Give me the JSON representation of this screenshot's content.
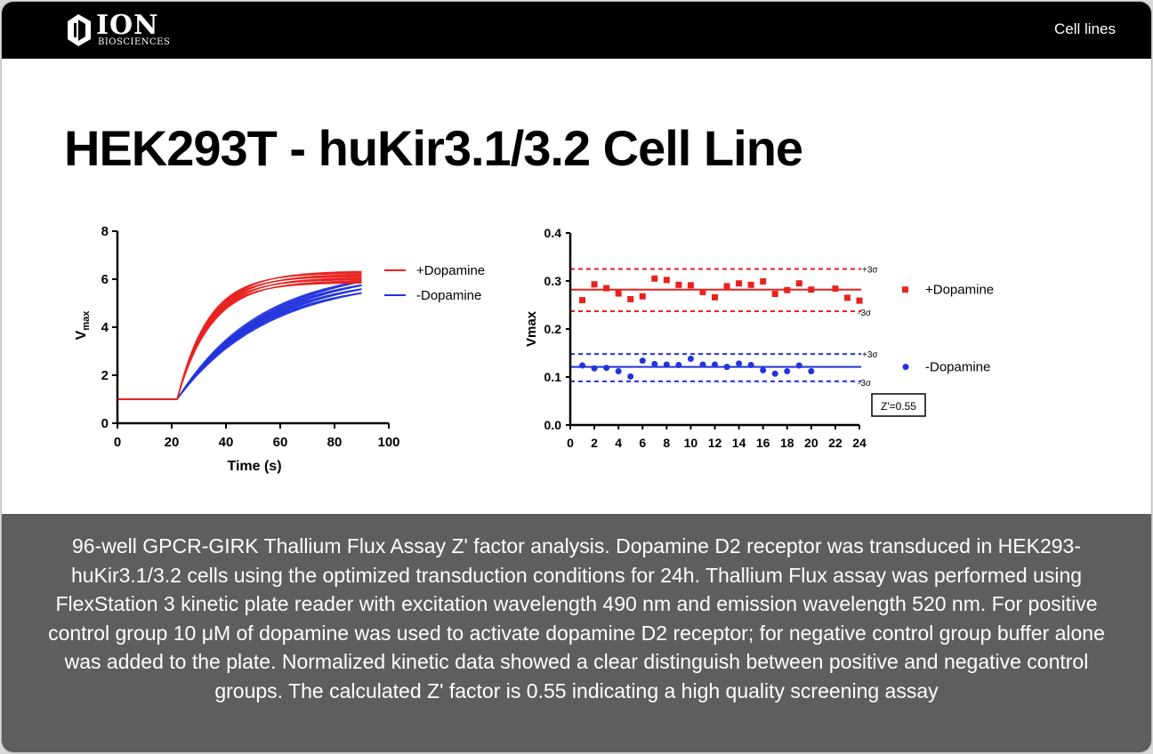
{
  "header": {
    "logo_text": "ION",
    "logo_subtext": "BIOSCIENCES",
    "nav_link": "Cell lines"
  },
  "page_title": "HEK293T - huKir3.1/3.2 Cell Line",
  "caption": "96-well GPCR-GIRK Thallium Flux Assay Z' factor analysis. Dopamine D2 receptor was transduced in HEK293- huKir3.1/3.2 cells using the optimized transduction conditions for 24h. Thallium Flux assay was performed using FlexStation 3 kinetic plate reader with excitation wavelength 490 nm and emission wavelength 520 nm. For positive control group 10 μM of dopamine was used to activate dopamine D2 receptor; for negative control group buffer alone was added to the plate. Normalized kinetic data showed a clear distinguish between positive and negative control groups. The calculated Z' factor is 0.55 indicating a high quality screening assay",
  "colors": {
    "positive": "#e8221f",
    "negative": "#2233dd",
    "topbar": "#000000",
    "caption_bg": "#5e5e5e"
  },
  "chart_data": [
    {
      "type": "line",
      "xlabel": "Time (s)",
      "ylabel": "V",
      "ylabel_sub": "max",
      "xlim": [
        0,
        100
      ],
      "ylim": [
        0,
        8
      ],
      "xticks": [
        "0",
        "20",
        "40",
        "60",
        "80",
        "100"
      ],
      "yticks": [
        "0",
        "2",
        "4",
        "6",
        "8"
      ],
      "legend_position": "right",
      "series": [
        {
          "name": "+Dopamine",
          "color": "#e8221f",
          "baseline": 1.0,
          "start_time": 22,
          "end_time": 90,
          "plateau": 6.1,
          "tau": 12,
          "trace_count": 20,
          "spread": 0.25
        },
        {
          "name": "-Dopamine",
          "color": "#2233dd",
          "baseline": 1.0,
          "start_time": 22,
          "end_time": 90,
          "plateau": 6.3,
          "tau": 32,
          "trace_count": 20,
          "spread": 0.35
        }
      ]
    },
    {
      "type": "scatter",
      "ylabel": "Vmax",
      "xlim": [
        0,
        24
      ],
      "ylim": [
        0.0,
        0.4
      ],
      "xticks": [
        "0",
        "2",
        "4",
        "6",
        "8",
        "10",
        "12",
        "14",
        "16",
        "18",
        "20",
        "22",
        "24"
      ],
      "yticks": [
        "0.0",
        "0.1",
        "0.2",
        "0.3",
        "0.4"
      ],
      "annotation": "Z'=0.55",
      "sigma_plus_label": "+3σ",
      "sigma_minus_label": "-3σ",
      "series": [
        {
          "name": "+Dopamine",
          "color": "#e8221f",
          "marker": "square",
          "mean": 0.282,
          "plus3sigma": 0.325,
          "minus3sigma": 0.237,
          "x": [
            1,
            2,
            3,
            4,
            5,
            6,
            7,
            8,
            9,
            10,
            11,
            12,
            13,
            14,
            15,
            16,
            17,
            18,
            19,
            20,
            22,
            23,
            24
          ],
          "y": [
            0.26,
            0.293,
            0.285,
            0.274,
            0.262,
            0.268,
            0.305,
            0.302,
            0.292,
            0.291,
            0.277,
            0.266,
            0.289,
            0.295,
            0.292,
            0.299,
            0.273,
            0.281,
            0.295,
            0.282,
            0.284,
            0.265,
            0.259
          ]
        },
        {
          "name": "-Dopamine",
          "color": "#2233dd",
          "marker": "circle",
          "mean": 0.121,
          "plus3sigma": 0.148,
          "minus3sigma": 0.091,
          "x": [
            1,
            2,
            3,
            4,
            5,
            6,
            7,
            8,
            9,
            10,
            11,
            12,
            13,
            14,
            15,
            16,
            17,
            18,
            19,
            20
          ],
          "y": [
            0.124,
            0.118,
            0.119,
            0.112,
            0.101,
            0.134,
            0.127,
            0.126,
            0.125,
            0.138,
            0.126,
            0.126,
            0.121,
            0.128,
            0.125,
            0.114,
            0.107,
            0.112,
            0.124,
            0.112
          ]
        }
      ]
    }
  ]
}
